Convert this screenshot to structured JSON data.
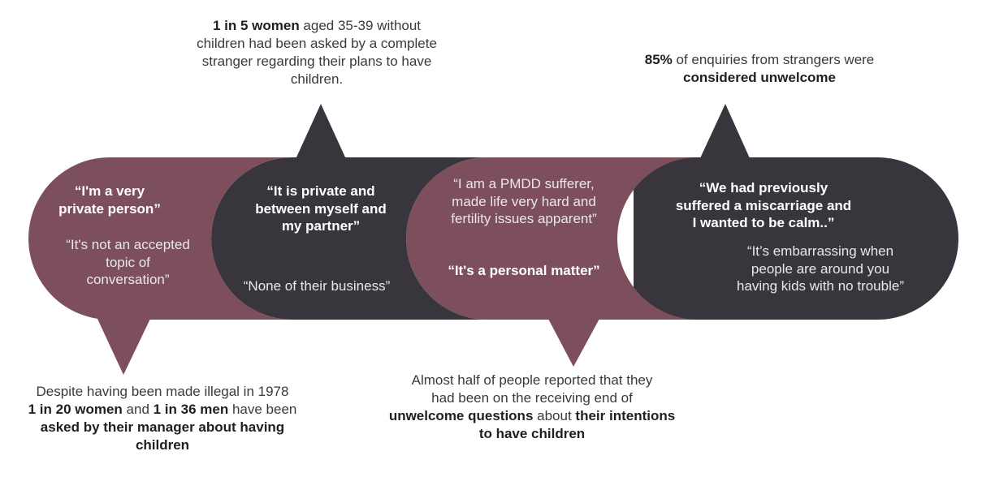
{
  "colors": {
    "maroon": "#7D4F5D",
    "charcoal": "#38363C",
    "text": "#3A3A3A",
    "quote_text": "#FFFFFF"
  },
  "callouts": {
    "top_left": {
      "line1_bold": "1 in 5 women",
      "line1_rest": " aged 35-39 without",
      "line2": "children had been asked by a complete",
      "line3": "stranger regarding their plans to have",
      "line4": "children."
    },
    "top_right": {
      "line1_bold": "85%",
      "line1_rest": " of enquiries from strangers were",
      "line2_bold": "considered unwelcome"
    },
    "bottom_left": {
      "line1": "Despite having been made illegal in 1978",
      "line2_bold_a": "1 in 20 women",
      "line2_mid": " and ",
      "line2_bold_b": "1 in 36 men",
      "line2_rest": " have been",
      "line3_bold": "asked by their manager about having",
      "line4_bold": "children"
    },
    "bottom_middle": {
      "line1": "Almost half of people reported that they",
      "line2": "had been on the receiving end of",
      "line3_bold_a": "unwelcome questions",
      "line3_mid": " about ",
      "line3_bold_b": "their intentions",
      "line4_bold": "to have children"
    }
  },
  "bubbles": [
    {
      "quote_bold": [
        "“I'm a very",
        "private person”"
      ],
      "quote": [
        "“It's not an accepted",
        "topic of",
        "conversation”"
      ]
    },
    {
      "quote_bold": [
        "“It is private and",
        "between myself and",
        "my partner”"
      ],
      "quote": [
        "“None of their business”"
      ]
    },
    {
      "quote": [
        "“I am a PMDD sufferer,",
        "made life very hard and",
        "fertility issues apparent”"
      ],
      "quote_bold": [
        "“It's a personal matter”"
      ]
    },
    {
      "quote_bold": [
        "“We had previously",
        "suffered a miscarriage and",
        "I wanted to be calm..”"
      ],
      "quote": [
        "“It’s embarrassing when",
        "people are around you",
        "having kids with no trouble”"
      ]
    }
  ]
}
